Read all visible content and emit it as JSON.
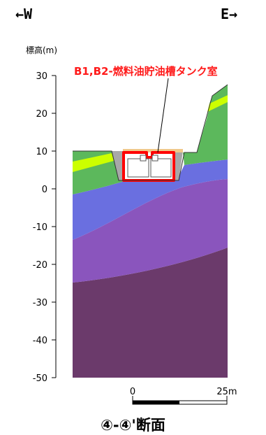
{
  "header": {
    "west_label": "←W",
    "east_label": "E→"
  },
  "axis": {
    "title": "標高(m)",
    "ticks": [
      "30",
      "20",
      "10",
      "0",
      "-10",
      "-20",
      "-30",
      "-40",
      "-50"
    ]
  },
  "callout": {
    "label": "B1,B2-燃料油貯油槽タンク室"
  },
  "scale_bar": {
    "start_label": "0",
    "end_label": "25m"
  },
  "section": {
    "title": "④-④'断面"
  },
  "colors": {
    "green_layer": "#5cb85c",
    "yellow_band": "#ccff00",
    "blue_layer": "#6a6fe0",
    "purple_layer": "#8a55bd",
    "deep_purple_layer": "#6b3a6b",
    "tank_outline": "#ff0000",
    "backfill": "#a8a8a8",
    "surface": "#f0c88a"
  }
}
